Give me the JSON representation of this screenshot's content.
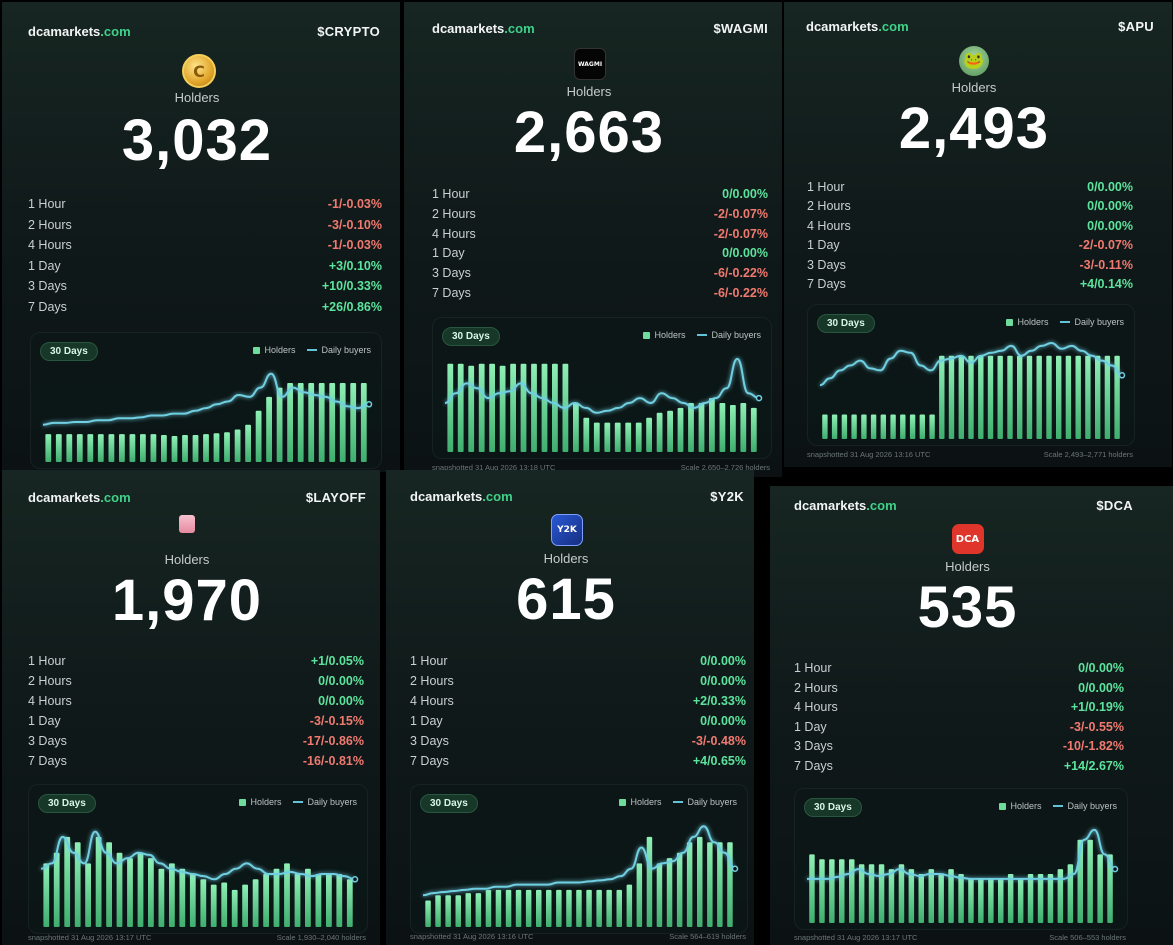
{
  "labels": {
    "holders": "Holders",
    "legend_holders": "Holders",
    "legend_daily_buyers": "Daily buyers",
    "range_pill": "30 Days"
  },
  "colors": {
    "accent": "#3fd18a",
    "positive": "#5ce39d",
    "negative": "#f07a70",
    "bar": "#6fdc9b",
    "line": "#62c3d6"
  },
  "cards": [
    {
      "brand_name": "dcamarkets",
      "brand_tld": ".com",
      "ticker": "$CRYPTO",
      "icon": "coin-icon",
      "icon_text": "C",
      "holders": "3,032",
      "stats": [
        {
          "label": "1 Hour",
          "value": "-1/-0.03%",
          "trend": "neg"
        },
        {
          "label": "2 Hours",
          "value": "-3/-0.10%",
          "trend": "neg"
        },
        {
          "label": "4 Hours",
          "value": "-1/-0.03%",
          "trend": "neg"
        },
        {
          "label": "1 Day",
          "value": "+3/0.10%",
          "trend": "pos"
        },
        {
          "label": "3 Days",
          "value": "+10/0.33%",
          "trend": "pos"
        },
        {
          "label": "7 Days",
          "value": "+26/0.86%",
          "trend": "pos"
        }
      ],
      "footer_left": "",
      "footer_right": "",
      "bars": [
        0.3,
        0.3,
        0.3,
        0.3,
        0.3,
        0.3,
        0.3,
        0.3,
        0.3,
        0.3,
        0.3,
        0.29,
        0.28,
        0.29,
        0.29,
        0.3,
        0.31,
        0.32,
        0.35,
        0.4,
        0.55,
        0.7,
        0.8,
        0.85,
        0.85,
        0.85,
        0.85,
        0.85,
        0.85,
        0.85,
        0.85
      ],
      "buyers": [
        0.4,
        0.42,
        0.42,
        0.43,
        0.43,
        0.45,
        0.45,
        0.47,
        0.47,
        0.48,
        0.5,
        0.5,
        0.52,
        0.52,
        0.55,
        0.58,
        0.62,
        0.65,
        0.72,
        0.7,
        0.8,
        0.95,
        0.7,
        0.8,
        0.75,
        0.72,
        0.7,
        0.65,
        0.6,
        0.58,
        0.62
      ]
    },
    {
      "brand_name": "dcamarkets",
      "brand_tld": ".com",
      "ticker": "$WAGMI",
      "icon": "wagmi-icon",
      "icon_text": "WAGMI",
      "holders": "2,663",
      "stats": [
        {
          "label": "1 Hour",
          "value": "0/0.00%",
          "trend": "pos"
        },
        {
          "label": "2 Hours",
          "value": "-2/-0.07%",
          "trend": "neg"
        },
        {
          "label": "4 Hours",
          "value": "-2/-0.07%",
          "trend": "neg"
        },
        {
          "label": "1 Day",
          "value": "0/0.00%",
          "trend": "pos"
        },
        {
          "label": "3 Days",
          "value": "-6/-0.22%",
          "trend": "neg"
        },
        {
          "label": "7 Days",
          "value": "-6/-0.22%",
          "trend": "neg"
        }
      ],
      "footer_left": "snapshotted 31 Aug 2026 13:18 UTC",
      "footer_right": "Scale 2,650–2,726 holders",
      "bars": [
        0.9,
        0.9,
        0.88,
        0.9,
        0.9,
        0.88,
        0.9,
        0.9,
        0.9,
        0.9,
        0.9,
        0.9,
        0.5,
        0.35,
        0.3,
        0.3,
        0.3,
        0.3,
        0.3,
        0.35,
        0.4,
        0.42,
        0.45,
        0.5,
        0.5,
        0.55,
        0.5,
        0.48,
        0.5,
        0.45
      ],
      "buyers": [
        0.5,
        0.6,
        0.7,
        0.65,
        0.55,
        0.6,
        0.62,
        0.7,
        0.6,
        0.55,
        0.5,
        0.45,
        0.5,
        0.45,
        0.4,
        0.42,
        0.45,
        0.5,
        0.55,
        0.5,
        0.6,
        0.55,
        0.5,
        0.45,
        0.5,
        0.55,
        0.65,
        0.95,
        0.6,
        0.55
      ]
    },
    {
      "brand_name": "dcamarkets",
      "brand_tld": ".com",
      "ticker": "$APU",
      "icon": "frog-icon",
      "icon_text": "🐸",
      "holders": "2,493",
      "stats": [
        {
          "label": "1 Hour",
          "value": "0/0.00%",
          "trend": "pos"
        },
        {
          "label": "2 Hours",
          "value": "0/0.00%",
          "trend": "pos"
        },
        {
          "label": "4 Hours",
          "value": "0/0.00%",
          "trend": "pos"
        },
        {
          "label": "1 Day",
          "value": "-2/-0.07%",
          "trend": "neg"
        },
        {
          "label": "3 Days",
          "value": "-3/-0.11%",
          "trend": "neg"
        },
        {
          "label": "7 Days",
          "value": "+4/0.14%",
          "trend": "pos"
        }
      ],
      "footer_left": "snapshotted 31 Aug 2026 13:16 UTC",
      "footer_right": "Scale 2,493–2,771 holders",
      "bars": [
        0.25,
        0.25,
        0.25,
        0.25,
        0.25,
        0.25,
        0.25,
        0.25,
        0.25,
        0.25,
        0.25,
        0.25,
        0.85,
        0.85,
        0.85,
        0.85,
        0.85,
        0.85,
        0.85,
        0.85,
        0.85,
        0.85,
        0.85,
        0.85,
        0.85,
        0.85,
        0.85,
        0.85,
        0.85,
        0.85,
        0.85
      ],
      "buyers": [
        0.55,
        0.62,
        0.7,
        0.75,
        0.8,
        0.72,
        0.7,
        0.82,
        0.9,
        0.88,
        0.75,
        0.7,
        0.8,
        0.82,
        0.85,
        0.78,
        0.85,
        0.88,
        0.9,
        0.95,
        0.85,
        0.9,
        0.95,
        0.98,
        0.92,
        0.95,
        0.9,
        0.85,
        0.8,
        0.75,
        0.65
      ]
    },
    {
      "brand_name": "dcamarkets",
      "brand_tld": ".com",
      "ticker": "$LAYOFF",
      "icon": "pink-box-icon",
      "icon_text": "",
      "holders": "1,970",
      "stats": [
        {
          "label": "1 Hour",
          "value": "+1/0.05%",
          "trend": "pos"
        },
        {
          "label": "2 Hours",
          "value": "0/0.00%",
          "trend": "pos"
        },
        {
          "label": "4 Hours",
          "value": "0/0.00%",
          "trend": "pos"
        },
        {
          "label": "1 Day",
          "value": "-3/-0.15%",
          "trend": "neg"
        },
        {
          "label": "3 Days",
          "value": "-17/-0.86%",
          "trend": "neg"
        },
        {
          "label": "7 Days",
          "value": "-16/-0.81%",
          "trend": "neg"
        }
      ],
      "footer_left": "snapshotted 31 Aug 2026 13:17 UTC",
      "footer_right": "Scale 1,930–2,040 holders",
      "bars": [
        0.6,
        0.7,
        0.85,
        0.8,
        0.6,
        0.85,
        0.8,
        0.7,
        0.65,
        0.7,
        0.65,
        0.55,
        0.6,
        0.55,
        0.5,
        0.45,
        0.4,
        0.42,
        0.35,
        0.4,
        0.45,
        0.5,
        0.55,
        0.6,
        0.5,
        0.55,
        0.5,
        0.5,
        0.5,
        0.45
      ],
      "buyers": [
        0.55,
        0.6,
        0.85,
        0.7,
        0.6,
        0.9,
        0.7,
        0.6,
        0.65,
        0.7,
        0.68,
        0.6,
        0.55,
        0.52,
        0.5,
        0.48,
        0.45,
        0.5,
        0.55,
        0.6,
        0.55,
        0.5,
        0.5,
        0.52,
        0.5,
        0.48,
        0.5,
        0.5,
        0.48,
        0.45
      ]
    },
    {
      "brand_name": "dcamarkets",
      "brand_tld": ".com",
      "ticker": "$Y2K",
      "icon": "y2k-icon",
      "icon_text": "Y2K",
      "holders": "615",
      "stats": [
        {
          "label": "1 Hour",
          "value": "0/0.00%",
          "trend": "pos"
        },
        {
          "label": "2 Hours",
          "value": "0/0.00%",
          "trend": "pos"
        },
        {
          "label": "4 Hours",
          "value": "+2/0.33%",
          "trend": "pos"
        },
        {
          "label": "1 Day",
          "value": "0/0.00%",
          "trend": "pos"
        },
        {
          "label": "3 Days",
          "value": "-3/-0.48%",
          "trend": "neg"
        },
        {
          "label": "7 Days",
          "value": "+4/0.65%",
          "trend": "pos"
        }
      ],
      "footer_left": "snapshotted 31 Aug 2026 13:16 UTC",
      "footer_right": "Scale 564–619 holders",
      "bars": [
        0.25,
        0.3,
        0.3,
        0.3,
        0.32,
        0.32,
        0.35,
        0.35,
        0.35,
        0.35,
        0.35,
        0.35,
        0.35,
        0.35,
        0.35,
        0.35,
        0.35,
        0.35,
        0.35,
        0.35,
        0.4,
        0.6,
        0.85,
        0.6,
        0.65,
        0.7,
        0.8,
        0.85,
        0.8,
        0.8,
        0.8
      ],
      "buyers": [
        0.3,
        0.32,
        0.33,
        0.34,
        0.35,
        0.36,
        0.36,
        0.38,
        0.38,
        0.4,
        0.4,
        0.4,
        0.4,
        0.42,
        0.42,
        0.42,
        0.43,
        0.44,
        0.45,
        0.48,
        0.55,
        0.75,
        0.55,
        0.6,
        0.62,
        0.7,
        0.85,
        0.95,
        0.8,
        0.7,
        0.55
      ]
    },
    {
      "brand_name": "dcamarkets",
      "brand_tld": ".com",
      "ticker": "$DCA",
      "icon": "dca-logo-icon",
      "icon_text": "DCA",
      "holders": "535",
      "stats": [
        {
          "label": "1 Hour",
          "value": "0/0.00%",
          "trend": "pos"
        },
        {
          "label": "2 Hours",
          "value": "0/0.00%",
          "trend": "pos"
        },
        {
          "label": "4 Hours",
          "value": "+1/0.19%",
          "trend": "pos"
        },
        {
          "label": "1 Day",
          "value": "-3/-0.55%",
          "trend": "neg"
        },
        {
          "label": "3 Days",
          "value": "-10/-1.82%",
          "trend": "neg"
        },
        {
          "label": "7 Days",
          "value": "+14/2.67%",
          "trend": "pos"
        }
      ],
      "footer_left": "snapshotted 31 Aug 2026 13:17 UTC",
      "footer_right": "Scale 506–553 holders",
      "bars": [
        0.7,
        0.65,
        0.65,
        0.65,
        0.65,
        0.6,
        0.6,
        0.6,
        0.55,
        0.6,
        0.55,
        0.5,
        0.55,
        0.5,
        0.55,
        0.5,
        0.45,
        0.45,
        0.45,
        0.45,
        0.5,
        0.45,
        0.5,
        0.5,
        0.5,
        0.55,
        0.6,
        0.85,
        0.85,
        0.7,
        0.7
      ],
      "buyers": [
        0.45,
        0.45,
        0.45,
        0.47,
        0.5,
        0.55,
        0.5,
        0.48,
        0.5,
        0.55,
        0.5,
        0.48,
        0.5,
        0.5,
        0.48,
        0.46,
        0.45,
        0.45,
        0.45,
        0.45,
        0.45,
        0.45,
        0.45,
        0.45,
        0.45,
        0.45,
        0.5,
        0.85,
        0.95,
        0.7,
        0.55
      ]
    }
  ]
}
